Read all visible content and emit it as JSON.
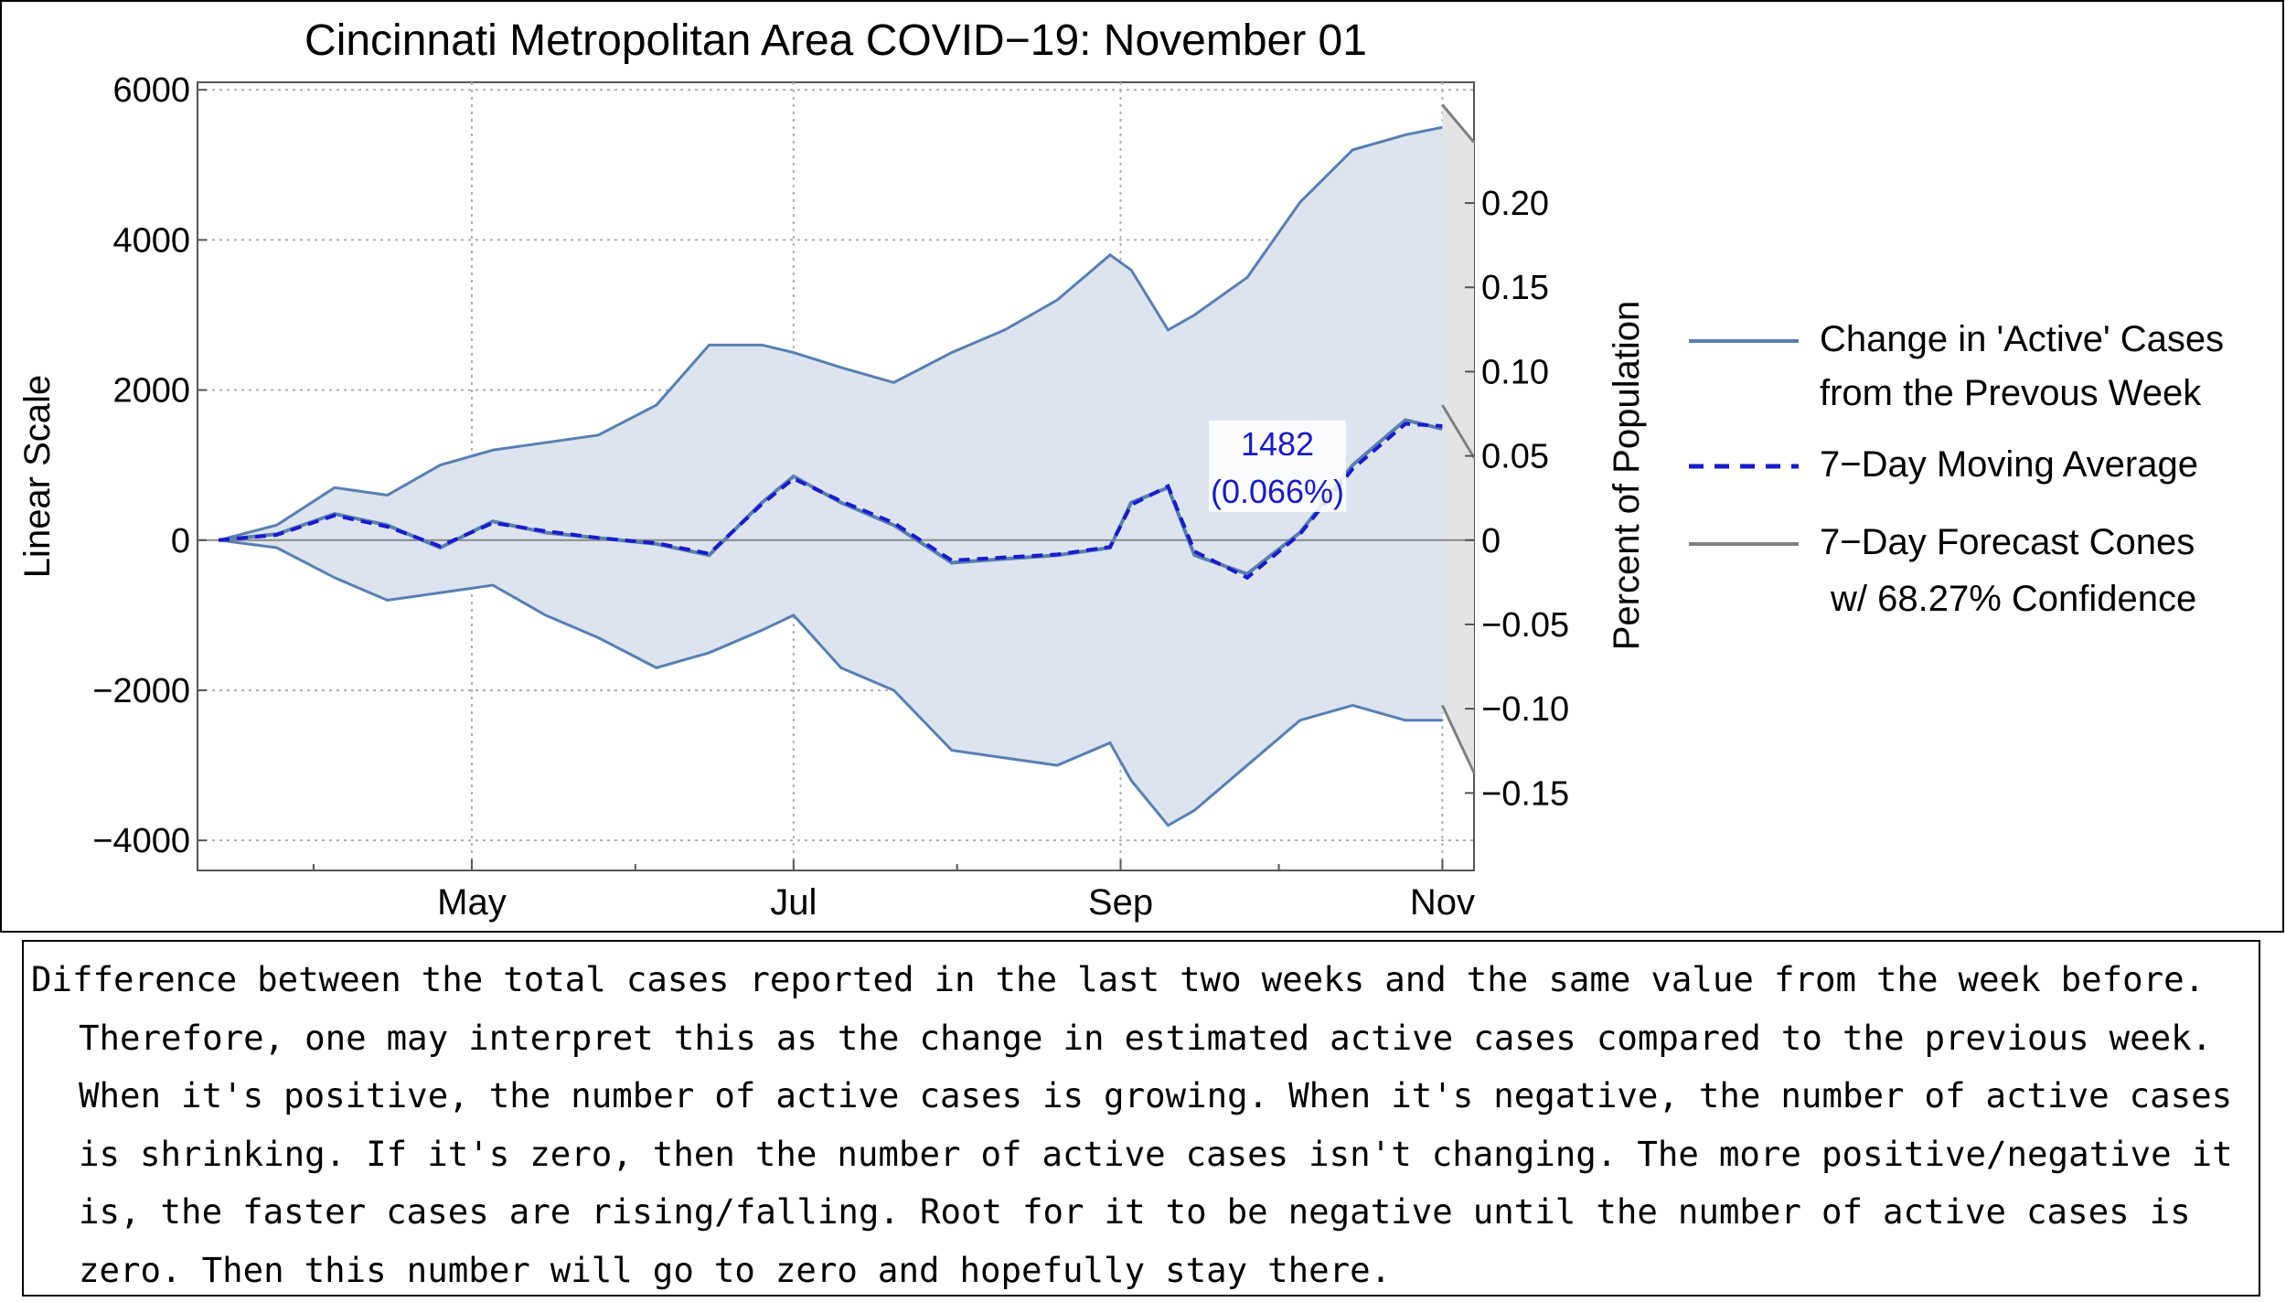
{
  "chart_data": {
    "type": "area",
    "title": "Cincinnati Metropolitan Area COVID−19: November 01",
    "ylabel": "Linear Scale",
    "y2label": "Percent of Population",
    "ylim": [
      -4400,
      6100
    ],
    "y_ticks": [
      -4000,
      -2000,
      0,
      2000,
      4000,
      6000
    ],
    "y_tick_labels": [
      "−4000",
      "−2000",
      "0",
      "2000",
      "4000",
      "6000"
    ],
    "y2_ticks": [
      -0.15,
      -0.1,
      -0.05,
      0,
      0.05,
      0.1,
      0.15,
      0.2
    ],
    "y2_tick_labels": [
      "−0.15",
      "−0.10",
      "−0.05",
      "0",
      "0.05",
      "0.10",
      "0.15",
      "0.20"
    ],
    "percent_per_case": 4.453e-05,
    "x_range": [
      "2020-03-10",
      "2020-11-07"
    ],
    "x_ticks": [
      "2020-05-01",
      "2020-07-01",
      "2020-09-01",
      "2020-11-01"
    ],
    "x_tick_labels": [
      "May",
      "Jul",
      "Sep",
      "Nov"
    ],
    "x_minor_ticks": [
      "2020-04-01",
      "2020-06-01",
      "2020-08-01",
      "2020-10-01"
    ],
    "grid": true,
    "legend_position": "right",
    "x": [
      "2020-03-14",
      "2020-03-25",
      "2020-04-05",
      "2020-04-15",
      "2020-04-25",
      "2020-05-05",
      "2020-05-15",
      "2020-05-25",
      "2020-06-05",
      "2020-06-15",
      "2020-06-25",
      "2020-07-01",
      "2020-07-10",
      "2020-07-20",
      "2020-07-31",
      "2020-08-10",
      "2020-08-20",
      "2020-08-30",
      "2020-09-03",
      "2020-09-10",
      "2020-09-15",
      "2020-09-25",
      "2020-10-05",
      "2020-10-15",
      "2020-10-25",
      "2020-11-01"
    ],
    "series": [
      {
        "name": "Change in 'Active' Cases from the Prevous Week",
        "color": "#5a7fb0",
        "values": [
          0,
          80,
          350,
          200,
          -100,
          250,
          100,
          30,
          -50,
          -200,
          500,
          850,
          500,
          200,
          -300,
          -250,
          -200,
          -100,
          500,
          700,
          -200,
          -450,
          100,
          1000,
          1600,
          1482
        ]
      },
      {
        "name": "7−Day Moving Average",
        "color": "#1a1acc",
        "values": [
          0,
          70,
          330,
          180,
          -80,
          230,
          120,
          30,
          -40,
          -180,
          480,
          820,
          520,
          230,
          -270,
          -230,
          -190,
          -90,
          470,
          720,
          -150,
          -500,
          80,
          950,
          1550,
          1520
        ]
      }
    ],
    "band": {
      "upper": [
        0,
        200,
        700,
        600,
        1000,
        1200,
        1300,
        1400,
        1800,
        2600,
        2600,
        2500,
        2300,
        2100,
        2500,
        2800,
        3200,
        3800,
        3600,
        2800,
        3000,
        3500,
        4500,
        5200,
        5400,
        5500
      ],
      "lower": [
        0,
        -100,
        -500,
        -800,
        -700,
        -600,
        -1000,
        -1300,
        -1700,
        -1500,
        -1200,
        -1000,
        -1700,
        -2000,
        -2800,
        -2900,
        -3000,
        -2700,
        -3200,
        -3800,
        -3600,
        -3000,
        -2400,
        -2200,
        -2400,
        -2400
      ]
    },
    "forecast_cones": {
      "name": "7−Day Forecast Cones w/ 68.27% Confidence",
      "color": "#808080",
      "x": [
        "2020-11-01",
        "2020-11-07"
      ],
      "upper": [
        5800,
        5300
      ],
      "middle": [
        1800,
        1100
      ],
      "lower": [
        -2200,
        -3100
      ]
    },
    "annotation": {
      "date": "2020-11-01",
      "value_text": "1482",
      "percent_text": "(0.066%)"
    }
  },
  "legend": {
    "items": [
      {
        "line1": "Change in 'Active' Cases",
        "line2": "from the Prevous Week"
      },
      {
        "line1": "7−Day Moving Average",
        "line2": ""
      },
      {
        "line1": "7−Day Forecast Cones",
        "line2": "w/ 68.27% Confidence"
      }
    ]
  },
  "caption": "Difference between the total cases reported in the last two weeks and the same value from the week before. Therefore, one may interpret this as the change in estimated active cases compared to the previous week. When it's positive, the number of active cases is growing. When it's negative, the number of active cases is shrinking. If it's zero, then the number of active cases isn't changing. The more positive/negative it is, the faster cases are rising/falling. Root for it to be negative until the number of active cases is zero. Then this number will go to zero and hopefully stay there."
}
